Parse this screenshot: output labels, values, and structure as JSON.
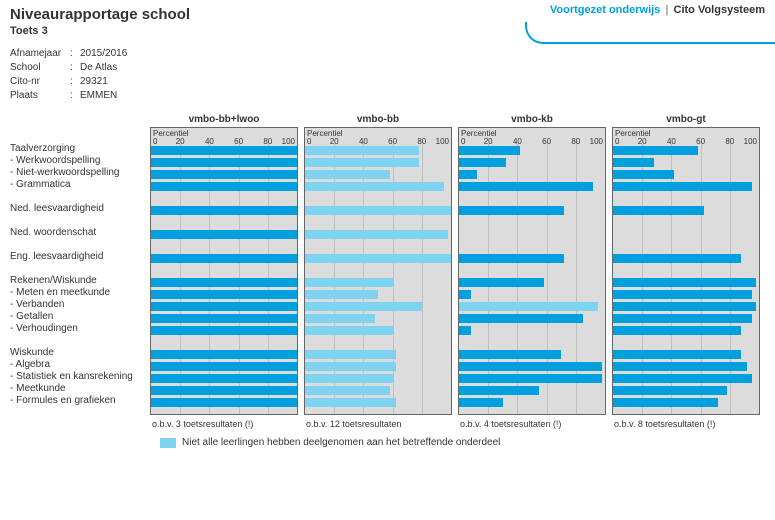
{
  "header": {
    "title": "Niveaurapportage school",
    "subtitle": "Toets 3",
    "right_vo": "Voortgezet onderwijs",
    "right_sep": "|",
    "right_cito": "Cito Volgsysteem"
  },
  "meta": [
    {
      "label": "Afnamejaar",
      "value": "2015/2016"
    },
    {
      "label": "School",
      "value": "De Atlas"
    },
    {
      "label": "Cito-nr",
      "value": "29321"
    },
    {
      "label": "Plaats",
      "value": "EMMEN"
    }
  ],
  "rows": [
    {
      "label": "Taalverzorging"
    },
    {
      "label": "- Werkwoordspelling"
    },
    {
      "label": "- Niet-werkwoordspelling"
    },
    {
      "label": "- Grammatica"
    },
    {
      "gap": true
    },
    {
      "label": "Ned. leesvaardigheid"
    },
    {
      "gap": true
    },
    {
      "label": "Ned. woordenschat"
    },
    {
      "gap": true
    },
    {
      "label": "Eng. leesvaardigheid"
    },
    {
      "gap": true
    },
    {
      "label": "Rekenen/Wiskunde"
    },
    {
      "label": "- Meten en meetkunde"
    },
    {
      "label": "- Verbanden"
    },
    {
      "label": "- Getallen"
    },
    {
      "label": "- Verhoudingen"
    },
    {
      "gap": true
    },
    {
      "label": "Wiskunde"
    },
    {
      "label": "- Algebra"
    },
    {
      "label": "- Statistiek en kansrekening"
    },
    {
      "label": "- Meetkunde"
    },
    {
      "label": "- Formules en grafieken"
    }
  ],
  "axis": {
    "percentiel_label": "Percentiel",
    "ticks": [
      0,
      20,
      40,
      60,
      80,
      100
    ],
    "grid_at": [
      0,
      20,
      40,
      60,
      80,
      100
    ]
  },
  "colors": {
    "bar": "#00a0de",
    "bar_light": "#7dd3f0",
    "panel_bg": "#dcdcdc",
    "grid": "#bfbfbf",
    "border": "#666666"
  },
  "charts": [
    {
      "title": "vmbo-bb+lwoo",
      "footer": "o.b.v. 3 toetsresultaten (!)",
      "bars": [
        {
          "v": 100
        },
        {
          "v": 100
        },
        {
          "v": 100
        },
        {
          "v": 100
        },
        {
          "gap": true
        },
        {
          "v": 100
        },
        {
          "gap": true
        },
        {
          "v": 100
        },
        {
          "gap": true
        },
        {
          "v": 100
        },
        {
          "gap": true
        },
        {
          "v": 100
        },
        {
          "v": 100
        },
        {
          "v": 100
        },
        {
          "v": 100
        },
        {
          "v": 100
        },
        {
          "gap": true
        },
        {
          "v": 100
        },
        {
          "v": 100
        },
        {
          "v": 100
        },
        {
          "v": 100
        },
        {
          "v": 100
        }
      ]
    },
    {
      "title": "vmbo-bb",
      "footer": "o.b.v. 12 toetsresultaten",
      "bars": [
        {
          "v": 78,
          "light": true
        },
        {
          "v": 78,
          "light": true
        },
        {
          "v": 58,
          "light": true
        },
        {
          "v": 95,
          "light": true
        },
        {
          "gap": true
        },
        {
          "v": 100,
          "light": true
        },
        {
          "gap": true
        },
        {
          "v": 98,
          "light": true
        },
        {
          "gap": true
        },
        {
          "v": 100,
          "light": true
        },
        {
          "gap": true
        },
        {
          "v": 60,
          "light": true
        },
        {
          "v": 50,
          "light": true
        },
        {
          "v": 80,
          "light": true
        },
        {
          "v": 48,
          "light": true
        },
        {
          "v": 60,
          "light": true
        },
        {
          "gap": true
        },
        {
          "v": 62,
          "light": true
        },
        {
          "v": 62,
          "light": true
        },
        {
          "v": 60,
          "light": true
        },
        {
          "v": 58,
          "light": true
        },
        {
          "v": 62,
          "light": true
        }
      ]
    },
    {
      "title": "vmbo-kb",
      "footer": "o.b.v. 4 toetsresultaten (!)",
      "bars": [
        {
          "v": 42
        },
        {
          "v": 32
        },
        {
          "v": 12
        },
        {
          "v": 92
        },
        {
          "gap": true
        },
        {
          "v": 72
        },
        {
          "gap": true
        },
        {
          "v": 0
        },
        {
          "gap": true
        },
        {
          "v": 72
        },
        {
          "gap": true
        },
        {
          "v": 58
        },
        {
          "v": 8
        },
        {
          "v": 95,
          "light": true
        },
        {
          "v": 85
        },
        {
          "v": 8
        },
        {
          "gap": true
        },
        {
          "v": 70
        },
        {
          "v": 98
        },
        {
          "v": 98
        },
        {
          "v": 55
        },
        {
          "v": 30
        }
      ]
    },
    {
      "title": "vmbo-gt",
      "footer": "o.b.v. 8 toetsresultaten (!)",
      "bars": [
        {
          "v": 58
        },
        {
          "v": 28
        },
        {
          "v": 42
        },
        {
          "v": 95
        },
        {
          "gap": true
        },
        {
          "v": 62
        },
        {
          "gap": true
        },
        {
          "v": 0
        },
        {
          "gap": true
        },
        {
          "v": 88
        },
        {
          "gap": true
        },
        {
          "v": 98
        },
        {
          "v": 95
        },
        {
          "v": 98
        },
        {
          "v": 95
        },
        {
          "v": 88
        },
        {
          "gap": true
        },
        {
          "v": 88
        },
        {
          "v": 92
        },
        {
          "v": 95
        },
        {
          "v": 78
        },
        {
          "v": 72
        }
      ]
    }
  ],
  "legend": {
    "text": "Niet alle leerlingen hebben deelgenomen aan het betreffende onderdeel"
  }
}
